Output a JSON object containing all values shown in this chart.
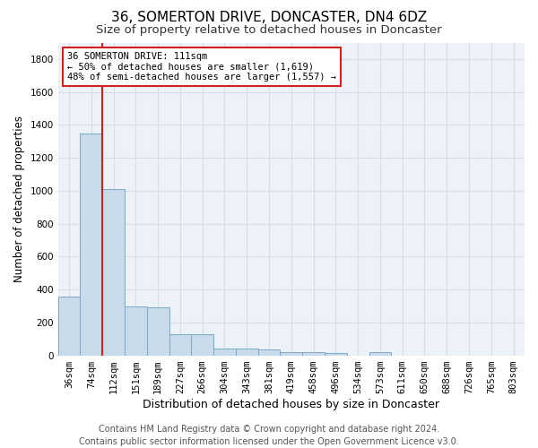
{
  "title": "36, SOMERTON DRIVE, DONCASTER, DN4 6DZ",
  "subtitle": "Size of property relative to detached houses in Doncaster",
  "xlabel": "Distribution of detached houses by size in Doncaster",
  "ylabel": "Number of detached properties",
  "bar_color": "#c9daea",
  "bar_edge_color": "#7aaac8",
  "background_color": "#edf1f8",
  "grid_color": "#d8dde8",
  "annotation_box_color": "#cc2222",
  "vline_color": "#cc2222",
  "categories": [
    "36sqm",
    "74sqm",
    "112sqm",
    "151sqm",
    "189sqm",
    "227sqm",
    "266sqm",
    "304sqm",
    "343sqm",
    "381sqm",
    "419sqm",
    "458sqm",
    "496sqm",
    "534sqm",
    "573sqm",
    "611sqm",
    "650sqm",
    "688sqm",
    "726sqm",
    "765sqm",
    "803sqm"
  ],
  "values": [
    355,
    1345,
    1010,
    295,
    290,
    130,
    130,
    40,
    40,
    35,
    20,
    20,
    15,
    0,
    20,
    0,
    0,
    0,
    0,
    0,
    0
  ],
  "ylim": [
    0,
    1900
  ],
  "yticks": [
    0,
    200,
    400,
    600,
    800,
    1000,
    1200,
    1400,
    1600,
    1800
  ],
  "vline_pos": 2,
  "annotation_text": "36 SOMERTON DRIVE: 111sqm\n← 50% of detached houses are smaller (1,619)\n48% of semi-detached houses are larger (1,557) →",
  "footer_text": "Contains HM Land Registry data © Crown copyright and database right 2024.\nContains public sector information licensed under the Open Government Licence v3.0.",
  "title_fontsize": 11,
  "subtitle_fontsize": 9.5,
  "ylabel_fontsize": 8.5,
  "xlabel_fontsize": 9,
  "annotation_fontsize": 7.5,
  "footer_fontsize": 7,
  "tick_fontsize": 7.5
}
